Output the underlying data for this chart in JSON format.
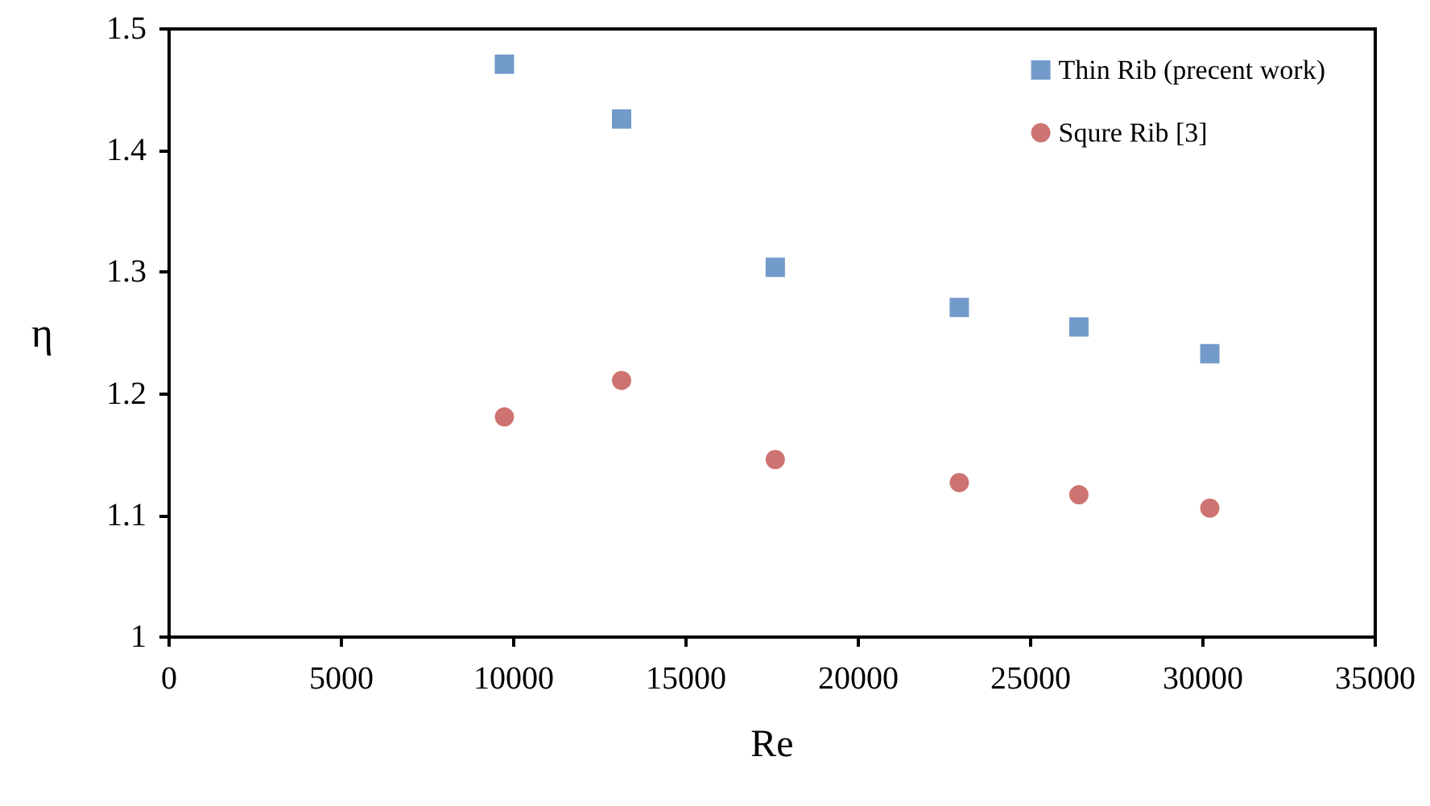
{
  "chart_data": {
    "type": "scatter",
    "xlabel": "Re",
    "ylabel": "η",
    "series": [
      {
        "name": "Thin Rib (precent work)",
        "color": "#4f81bd",
        "marker": "square",
        "x": [
          9730,
          13130,
          17590,
          22930,
          26400,
          30200
        ],
        "values": [
          1.471,
          1.426,
          1.304,
          1.271,
          1.255,
          1.233
        ]
      },
      {
        "name": "Squre Rib [3]",
        "color": "#c0504d",
        "marker": "circle",
        "x": [
          9730,
          13130,
          17590,
          22930,
          26400,
          30200
        ],
        "values": [
          1.181,
          1.211,
          1.146,
          1.127,
          1.117,
          1.106
        ]
      }
    ],
    "xlim": [
      0,
      35000
    ],
    "xticks": [
      0,
      5000,
      10000,
      15000,
      20000,
      25000,
      30000,
      35000
    ],
    "ylim": [
      1,
      1.5
    ],
    "yticks": [
      1,
      1.1,
      1.2,
      1.3,
      1.4,
      1.5
    ],
    "grid": false,
    "legend": "top right"
  }
}
